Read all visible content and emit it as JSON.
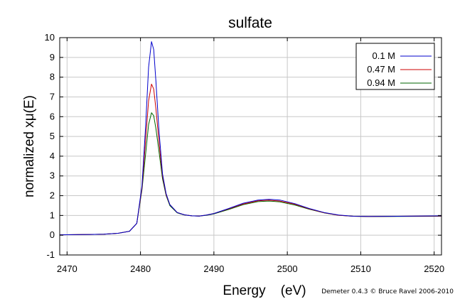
{
  "chart_data": {
    "type": "line",
    "title": "sulfate",
    "xlabel": "Energy    (eV)",
    "ylabel": "normalized xμ(E)",
    "xlim": [
      2469,
      2521
    ],
    "ylim": [
      -1,
      10
    ],
    "x_ticks": [
      2470,
      2480,
      2490,
      2500,
      2510,
      2520
    ],
    "y_ticks": [
      -1,
      0,
      1,
      2,
      3,
      4,
      5,
      6,
      7,
      8,
      9,
      10
    ],
    "x_tick_labels": [
      "2470",
      "2480",
      "2490",
      "2500",
      "2510",
      "2520"
    ],
    "y_tick_labels": [
      "-1",
      "0",
      "1",
      "2",
      "3",
      "4",
      "5",
      "6",
      "7",
      "8",
      "9",
      "10"
    ],
    "grid": true,
    "legend_position": "top-right",
    "x": [
      2469,
      2472,
      2475,
      2477,
      2478.5,
      2479.5,
      2480.2,
      2480.7,
      2481.1,
      2481.5,
      2481.8,
      2482.1,
      2482.5,
      2483,
      2483.5,
      2484,
      2485,
      2486,
      2487,
      2488,
      2489,
      2490,
      2492,
      2494,
      2496,
      2497.5,
      2499,
      2501,
      2503,
      2505,
      2507,
      2509,
      2511,
      2515,
      2521
    ],
    "series": [
      {
        "name": "0.1 M",
        "color": "#0000cc",
        "values": [
          0.02,
          0.03,
          0.05,
          0.1,
          0.2,
          0.6,
          2.5,
          5.5,
          8.5,
          9.8,
          9.4,
          7.8,
          5.4,
          3.1,
          2.1,
          1.55,
          1.15,
          1.03,
          0.98,
          0.97,
          1.02,
          1.1,
          1.35,
          1.62,
          1.78,
          1.82,
          1.78,
          1.6,
          1.35,
          1.15,
          1.02,
          0.96,
          0.95,
          0.96,
          0.98
        ]
      },
      {
        "name": "0.47 M",
        "color": "#cc0000",
        "values": [
          0.02,
          0.03,
          0.05,
          0.1,
          0.2,
          0.6,
          2.4,
          4.8,
          6.8,
          7.65,
          7.4,
          6.4,
          4.8,
          3.0,
          2.05,
          1.55,
          1.15,
          1.03,
          0.98,
          0.97,
          1.02,
          1.1,
          1.33,
          1.58,
          1.74,
          1.77,
          1.73,
          1.57,
          1.33,
          1.14,
          1.01,
          0.96,
          0.95,
          0.96,
          0.97
        ]
      },
      {
        "name": "0.94 M",
        "color": "#006600",
        "values": [
          0.02,
          0.03,
          0.05,
          0.1,
          0.2,
          0.6,
          2.3,
          4.1,
          5.6,
          6.2,
          6.05,
          5.4,
          4.3,
          2.85,
          2.0,
          1.5,
          1.13,
          1.02,
          0.98,
          0.97,
          1.01,
          1.08,
          1.3,
          1.55,
          1.7,
          1.73,
          1.69,
          1.53,
          1.31,
          1.13,
          1.01,
          0.96,
          0.94,
          0.95,
          0.96
        ]
      }
    ]
  },
  "credit": "Demeter 0.4.3 © Bruce Ravel 2006-2010"
}
